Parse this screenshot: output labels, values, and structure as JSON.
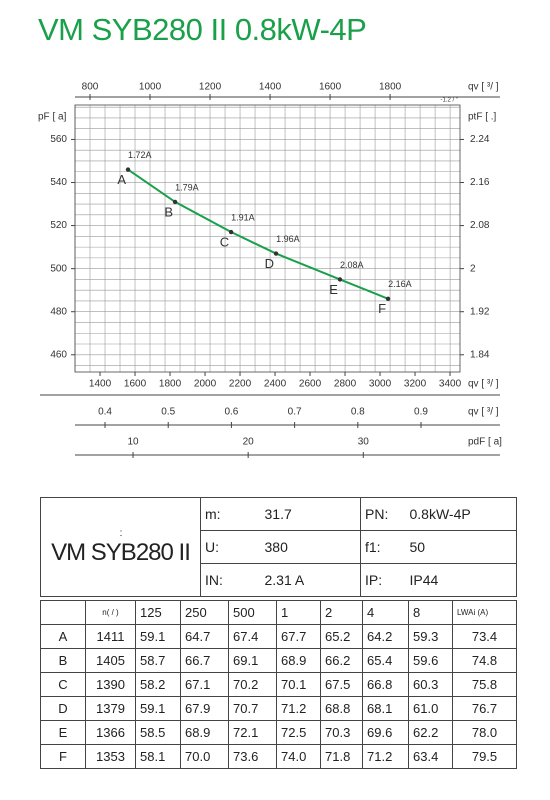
{
  "title": "VM SYB280 II 0.8kW-4P",
  "chart_data": {
    "type": "line",
    "x": [
      1560,
      1829,
      2149,
      2406,
      2771,
      3046
    ],
    "series": [
      {
        "color": "#1aa04a",
        "values": [
          546,
          531,
          517,
          507,
          495,
          486
        ]
      }
    ],
    "point_labels": [
      "A",
      "B",
      "C",
      "D",
      "E",
      "F"
    ],
    "annotations": [
      "1.72A",
      "1.79A",
      "1.91A",
      "1.96A",
      "2.08A",
      "2.16A"
    ],
    "xlabel": "qv [  ³/  ]",
    "xlim": [
      1257,
      3457
    ],
    "xticks": [
      1400,
      1600,
      1800,
      2000,
      2200,
      2400,
      2600,
      2800,
      3000,
      3200,
      3400
    ],
    "ylabel": "pF [  a]",
    "ylim": [
      452,
      576
    ],
    "yticks": [
      460,
      480,
      500,
      520,
      540,
      560
    ],
    "y2label": "ptF [     .]",
    "y2lim": [
      1.808,
      2.304
    ],
    "y2ticks": [
      1.84,
      1.92,
      2.0,
      2.08,
      2.16,
      2.24
    ],
    "minor_yticks": [
      455,
      460,
      465,
      470,
      475,
      480,
      485,
      490,
      495,
      500,
      505,
      510,
      515,
      520,
      525,
      530,
      535,
      540,
      545,
      550,
      555,
      560,
      565,
      570,
      575
    ],
    "secondary_x_axes": [
      {
        "position": "top",
        "label": "qv [  ³/   ]",
        "note": "-1.2  /  \"",
        "lim": [
          750,
          2033
        ],
        "ticks": [
          800,
          1000,
          1200,
          1400,
          1600,
          1800
        ],
        "minor_ticks": [
          750,
          800,
          850,
          900,
          950,
          1000,
          1050,
          1100,
          1150,
          1200,
          1250,
          1300,
          1350,
          1400,
          1450,
          1500,
          1550,
          1600,
          1650,
          1700,
          1750,
          1800,
          1850,
          1900,
          1950,
          2000
        ]
      },
      {
        "position": "bottom",
        "label": "qv [  ³/  ]",
        "lim": [
          0.3525,
          0.9617
        ],
        "ticks": [
          0.4,
          0.5,
          0.6,
          0.7,
          0.8,
          0.9
        ]
      },
      {
        "position": "bottom",
        "label": "pdF [  a]",
        "lim": [
          4.96,
          38.4
        ],
        "ticks": [
          10,
          20,
          30
        ]
      }
    ],
    "grid": true
  },
  "table": {
    "model_note": ":",
    "model": "VM SYB280 II",
    "params": [
      [
        "m:",
        "31.7",
        "PN:",
        "0.8kW-4P"
      ],
      [
        "U:",
        "380",
        "f1:",
        "50"
      ],
      [
        "IN:",
        "2.31  A",
        "IP:",
        "IP44"
      ]
    ],
    "header": [
      "n( / )",
      "125",
      "250",
      "500",
      "1",
      "2",
      "4",
      "8",
      "LWAi     (A)"
    ],
    "rows": [
      [
        "A",
        "1411",
        "59.1",
        "64.7",
        "67.4",
        "67.7",
        "65.2",
        "64.2",
        "59.3",
        "73.4"
      ],
      [
        "B",
        "1405",
        "58.7",
        "66.7",
        "69.1",
        "68.9",
        "66.2",
        "65.4",
        "59.6",
        "74.8"
      ],
      [
        "C",
        "1390",
        "58.2",
        "67.1",
        "70.2",
        "70.1",
        "67.5",
        "66.8",
        "60.3",
        "75.8"
      ],
      [
        "D",
        "1379",
        "59.1",
        "67.9",
        "70.7",
        "71.2",
        "68.8",
        "68.1",
        "61.0",
        "76.7"
      ],
      [
        "E",
        "1366",
        "58.5",
        "68.9",
        "72.1",
        "72.5",
        "70.3",
        "69.6",
        "62.2",
        "78.0"
      ],
      [
        "F",
        "1353",
        "58.1",
        "70.0",
        "73.6",
        "74.0",
        "71.8",
        "71.2",
        "63.4",
        "79.5"
      ]
    ]
  }
}
